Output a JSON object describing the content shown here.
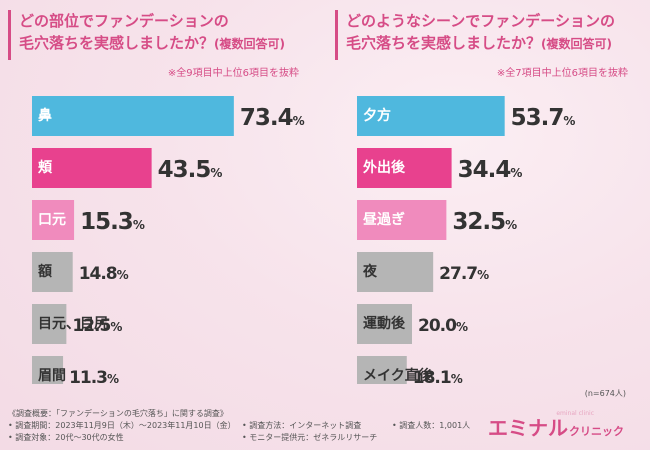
{
  "left": {
    "title_line1": "どの部位でファンデーションの",
    "title_line2": "毛穴落ちを実感しましたか？",
    "title_sub": "(複数回答可)",
    "note": "※全9項目中上位6項目を抜粋"
  },
  "right": {
    "title_line1": "どのようなシーンでファンデーションの",
    "title_line2": "毛穴落ちを実感しましたか？",
    "title_sub": "(複数回答可)",
    "note": "※全7項目中上位6項目を抜粋",
    "sample": "(n=674人)"
  },
  "chart_data": [
    {
      "type": "bar",
      "orientation": "horizontal",
      "title": "どの部位でファンデーションの毛穴落ちを実感しましたか？(複数回答可)",
      "categories": [
        "鼻",
        "頬",
        "口元",
        "額",
        "目元、目尻",
        "眉間"
      ],
      "values": [
        73.4,
        43.5,
        15.3,
        14.8,
        12.5,
        11.3
      ],
      "unit": "%",
      "labels": [
        "73.4",
        "43.5",
        "15.3",
        "14.8",
        "12.5",
        "11.3"
      ],
      "colors": [
        "#4fb8de",
        "#e8418e",
        "#f08bbd",
        "#b5b5b5",
        "#b5b5b5",
        "#b5b5b5"
      ],
      "xlim": [
        0,
        100
      ]
    },
    {
      "type": "bar",
      "orientation": "horizontal",
      "title": "どのようなシーンでファンデーションの毛穴落ちを実感しましたか？(複数回答可)",
      "categories": [
        "夕方",
        "外出後",
        "昼過ぎ",
        "夜",
        "運動後",
        "メイク直後"
      ],
      "values": [
        53.7,
        34.4,
        32.5,
        27.7,
        20.0,
        18.1
      ],
      "unit": "%",
      "labels": [
        "53.7",
        "34.4",
        "32.5",
        "27.7",
        "20.0",
        "18.1"
      ],
      "colors": [
        "#4fb8de",
        "#e8418e",
        "#f08bbd",
        "#b5b5b5",
        "#b5b5b5",
        "#b5b5b5"
      ],
      "xlim": [
        0,
        100
      ]
    }
  ],
  "footer": {
    "survey_title": "《調査概要：「ファンデーションの毛穴落ち」に関する調査》",
    "period": "• 調査期間：2023年11月9日（木）〜2023年11月10日（金）",
    "target": "• 調査対象：20代〜30代の女性",
    "method": "• 調査方法：インターネット調査",
    "monitor": "• モニター提供元：ゼネラルリサーチ",
    "count": "• 調査人数：1,001人"
  },
  "brand": {
    "name": "エミナル",
    "suffix": "クリニック",
    "tag": "eminal clinic"
  }
}
